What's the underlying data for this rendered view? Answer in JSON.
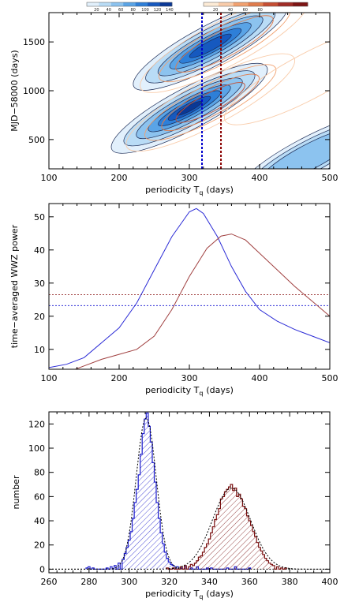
{
  "colorbars": {
    "blue": {
      "colors": [
        "#e2f0fc",
        "#b9dcf6",
        "#8cc3ef",
        "#5aa4e6",
        "#2e7fd8",
        "#1659bf",
        "#0a3896"
      ],
      "ticks": [
        "20",
        "40",
        "60",
        "80",
        "100",
        "120",
        "140"
      ]
    },
    "red": {
      "colors": [
        "#fdebd6",
        "#f9ccaa",
        "#f1a170",
        "#e07c4c",
        "#c54e33",
        "#a02c26",
        "#7d1414"
      ],
      "ticks": [
        "20",
        "40",
        "60",
        "80"
      ]
    }
  },
  "chart_data": [
    {
      "type": "heatmap",
      "xlabel": "periodicity T",
      "xlabel_sub": "q",
      "xlabel_unit": "(days)",
      "ylabel": "MJD−58000  (days)",
      "xlim": [
        100,
        500
      ],
      "ylim": [
        200,
        1800
      ],
      "xticks": [
        "100",
        "200",
        "300",
        "400",
        "500"
      ],
      "yticks": [
        "500",
        "1000",
        "1500"
      ],
      "ytick_values": [
        500,
        1000,
        1500
      ],
      "blue_peaks": [
        {
          "x": 300,
          "y": 820,
          "level": 7
        },
        {
          "x": 330,
          "y": 1460,
          "level": 6
        },
        {
          "x": 470,
          "y": 320,
          "level": 3
        }
      ],
      "red_peaks": [
        {
          "x": 330,
          "y": 880,
          "level": 4
        },
        {
          "x": 350,
          "y": 1480,
          "level": 3
        },
        {
          "x": 470,
          "y": 1150,
          "level": 1
        }
      ],
      "vlines": [
        {
          "x": 318,
          "color": "#0000cc"
        },
        {
          "x": 345,
          "color": "#8b0000"
        }
      ]
    },
    {
      "type": "line",
      "xlabel": "periodicity T",
      "xlabel_sub": "q",
      "xlabel_unit": "(days)",
      "ylabel": "time−averaged WWZ power",
      "xlim": [
        100,
        500
      ],
      "ylim": [
        4,
        54
      ],
      "xticks": [
        "100",
        "200",
        "300",
        "400",
        "500"
      ],
      "yticks": [
        "10",
        "20",
        "30",
        "40",
        "50"
      ],
      "ytick_values": [
        10,
        20,
        30,
        40,
        50
      ],
      "series": [
        {
          "color": "#2b2bd6",
          "x": [
            100,
            125,
            150,
            175,
            200,
            225,
            250,
            275,
            300,
            310,
            320,
            340,
            360,
            380,
            400,
            425,
            450,
            475,
            500
          ],
          "y": [
            4.5,
            5.5,
            7.5,
            12,
            16.5,
            24,
            34,
            44,
            51.5,
            52.5,
            51,
            44,
            35,
            27.5,
            22,
            18.5,
            16,
            14,
            12
          ]
        },
        {
          "color": "#a04040",
          "x": [
            100,
            125,
            150,
            175,
            200,
            225,
            250,
            275,
            300,
            325,
            345,
            360,
            380,
            400,
            425,
            450,
            475,
            500
          ],
          "y": [
            2,
            3,
            5,
            7,
            8.5,
            10,
            14,
            22,
            32,
            40.5,
            44.2,
            44.8,
            43,
            39,
            34,
            29,
            24.5,
            20
          ]
        }
      ],
      "hlines": [
        {
          "y": 26.5,
          "color": "#a04040"
        },
        {
          "y": 23.2,
          "color": "#2b2bd6"
        }
      ]
    },
    {
      "type": "bar",
      "xlabel": "periodicity T",
      "xlabel_sub": "q",
      "xlabel_unit": "(days)",
      "ylabel": "number",
      "xlim": [
        260,
        400
      ],
      "ylim": [
        -3,
        130
      ],
      "xticks": [
        "260",
        "280",
        "300",
        "320",
        "340",
        "360",
        "380",
        "400"
      ],
      "yticks": [
        "0",
        "20",
        "40",
        "60",
        "80",
        "100",
        "120"
      ],
      "ytick_values": [
        0,
        20,
        40,
        60,
        80,
        100,
        120
      ],
      "bin_width": 1,
      "series": [
        {
          "color": "#1a1acc",
          "fit_mean": 308.5,
          "fit_sigma": 5.0,
          "fit_amp": 125,
          "bins": [
            [
              279,
              1
            ],
            [
              280,
              2
            ],
            [
              282,
              1
            ],
            [
              289,
              1
            ],
            [
              291,
              2
            ],
            [
              293,
              3
            ],
            [
              295,
              5
            ],
            [
              297,
              8
            ],
            [
              298,
              13
            ],
            [
              299,
              18
            ],
            [
              300,
              24
            ],
            [
              301,
              31
            ],
            [
              302,
              42
            ],
            [
              303,
              55
            ],
            [
              304,
              66
            ],
            [
              305,
              78
            ],
            [
              306,
              95
            ],
            [
              307,
              112
            ],
            [
              308,
              124
            ],
            [
              309,
              129
            ],
            [
              310,
              118
            ],
            [
              311,
              105
            ],
            [
              312,
              88
            ],
            [
              313,
              72
            ],
            [
              314,
              55
            ],
            [
              315,
              42
            ],
            [
              316,
              30
            ],
            [
              317,
              21
            ],
            [
              318,
              14
            ],
            [
              319,
              9
            ],
            [
              320,
              6
            ],
            [
              321,
              4
            ],
            [
              322,
              3
            ],
            [
              324,
              2
            ],
            [
              326,
              1
            ],
            [
              328,
              2
            ],
            [
              331,
              1
            ],
            [
              334,
              2
            ],
            [
              339,
              1
            ],
            [
              341,
              1
            ],
            [
              349,
              1
            ],
            [
              353,
              2
            ],
            [
              360,
              1
            ]
          ]
        },
        {
          "color": "#7a1010",
          "fit_mean": 351,
          "fit_sigma": 9.5,
          "fit_amp": 67,
          "bins": [
            [
              319,
              1
            ],
            [
              322,
              1
            ],
            [
              326,
              2
            ],
            [
              328,
              3
            ],
            [
              330,
              2
            ],
            [
              331,
              4
            ],
            [
              332,
              3
            ],
            [
              333,
              5
            ],
            [
              334,
              7
            ],
            [
              335,
              10
            ],
            [
              336,
              11
            ],
            [
              337,
              14
            ],
            [
              338,
              18
            ],
            [
              339,
              21
            ],
            [
              340,
              25
            ],
            [
              341,
              30
            ],
            [
              342,
              35
            ],
            [
              343,
              41
            ],
            [
              344,
              45
            ],
            [
              345,
              50
            ],
            [
              346,
              58
            ],
            [
              347,
              60
            ],
            [
              348,
              64
            ],
            [
              349,
              66
            ],
            [
              350,
              68
            ],
            [
              351,
              70
            ],
            [
              352,
              65
            ],
            [
              353,
              67
            ],
            [
              354,
              60
            ],
            [
              355,
              62
            ],
            [
              356,
              58
            ],
            [
              357,
              52
            ],
            [
              358,
              50
            ],
            [
              359,
              44
            ],
            [
              360,
              40
            ],
            [
              361,
              36
            ],
            [
              362,
              31
            ],
            [
              363,
              27
            ],
            [
              364,
              22
            ],
            [
              365,
              18
            ],
            [
              366,
              15
            ],
            [
              367,
              12
            ],
            [
              368,
              9
            ],
            [
              369,
              7
            ],
            [
              370,
              5
            ],
            [
              371,
              4
            ],
            [
              372,
              3
            ],
            [
              374,
              2
            ],
            [
              376,
              1
            ],
            [
              378,
              1
            ]
          ]
        }
      ]
    }
  ]
}
